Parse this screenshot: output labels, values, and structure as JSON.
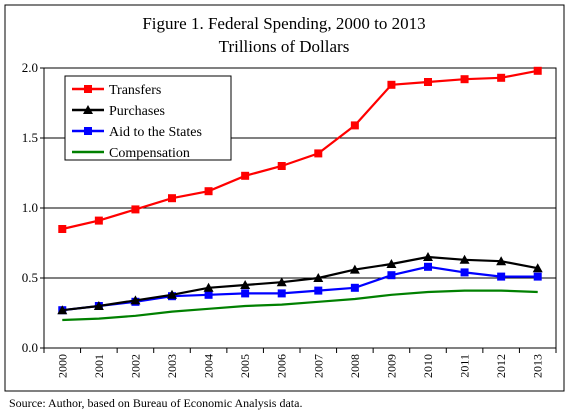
{
  "chart_data": {
    "type": "line",
    "title": "Figure 1. Federal Spending, 2000 to 2013",
    "subtitle": "Trillions of Dollars",
    "xlabel": "",
    "ylabel": "",
    "categories": [
      "2000",
      "2001",
      "2002",
      "2003",
      "2004",
      "2005",
      "2006",
      "2007",
      "2008",
      "2009",
      "2010",
      "2011",
      "2012",
      "2013"
    ],
    "ylim": [
      0,
      2.0
    ],
    "yticks": [
      "0.0",
      "0.5",
      "1.0",
      "1.5",
      "2.0"
    ],
    "grid": "horizontal",
    "legend_position": "top-left",
    "series": [
      {
        "name": "Transfers",
        "color": "#ff0000",
        "marker": "square",
        "values": [
          0.85,
          0.91,
          0.99,
          1.07,
          1.12,
          1.23,
          1.3,
          1.39,
          1.59,
          1.88,
          1.9,
          1.92,
          1.93,
          1.98
        ]
      },
      {
        "name": "Purchases",
        "color": "#000000",
        "marker": "triangle",
        "values": [
          0.27,
          0.3,
          0.34,
          0.38,
          0.43,
          0.45,
          0.47,
          0.5,
          0.56,
          0.6,
          0.65,
          0.63,
          0.62,
          0.57
        ]
      },
      {
        "name": "Aid to the States",
        "color": "#0000ff",
        "marker": "square",
        "values": [
          0.27,
          0.3,
          0.33,
          0.37,
          0.38,
          0.39,
          0.39,
          0.41,
          0.43,
          0.52,
          0.58,
          0.54,
          0.51,
          0.51
        ]
      },
      {
        "name": "Compensation",
        "color": "#008000",
        "marker": "none",
        "values": [
          0.2,
          0.21,
          0.23,
          0.26,
          0.28,
          0.3,
          0.31,
          0.33,
          0.35,
          0.38,
          0.4,
          0.41,
          0.41,
          0.4
        ]
      }
    ]
  },
  "source_note": "Source: Author, based on Bureau of Economic Analysis data."
}
